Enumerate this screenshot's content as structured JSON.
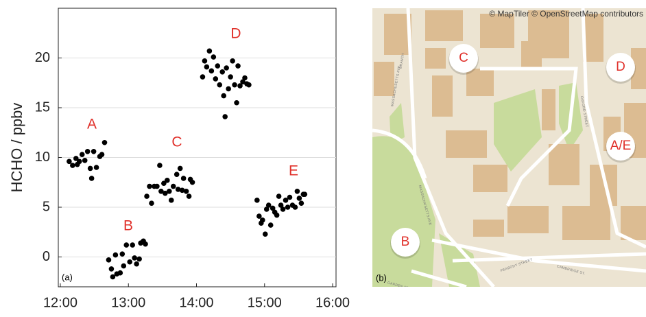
{
  "chart_data": {
    "type": "scatter",
    "ylabel": "HCHO / ppbv",
    "panel_label": "(a)",
    "xlim": [
      11.97,
      16.05
    ],
    "ylim": [
      -3,
      25
    ],
    "xticks": [
      {
        "value": 12,
        "label": "12:00"
      },
      {
        "value": 13,
        "label": "13:00"
      },
      {
        "value": 14,
        "label": "14:00"
      },
      {
        "value": 15,
        "label": "15:00"
      },
      {
        "value": 16,
        "label": "16:00"
      }
    ],
    "yticks": [
      0,
      5,
      10,
      15,
      20
    ],
    "grid": true,
    "annotations": [
      "A",
      "B",
      "C",
      "D",
      "E"
    ],
    "annotation_color": "#e0302a",
    "series": [
      {
        "color": "#000000",
        "x": [
          12.13,
          12.18,
          12.23,
          12.28,
          12.32,
          12.36,
          12.4,
          12.25,
          12.44,
          12.46,
          12.49,
          12.53,
          12.58,
          12.61,
          12.65,
          12.71,
          12.75,
          12.77,
          12.81,
          12.83,
          12.88,
          12.91,
          12.93,
          12.97,
          13.02,
          13.06,
          13.09,
          13.12,
          13.16,
          13.18,
          13.22,
          13.25,
          13.27,
          13.31,
          13.34,
          13.38,
          13.42,
          13.46,
          13.48,
          13.52,
          13.54,
          13.57,
          13.6,
          13.63,
          13.66,
          13.71,
          13.73,
          13.76,
          13.79,
          13.81,
          13.85,
          13.89,
          13.91,
          13.94,
          14.09,
          14.12,
          14.15,
          14.19,
          14.22,
          14.25,
          14.28,
          14.31,
          14.34,
          14.38,
          14.4,
          14.42,
          14.44,
          14.47,
          14.5,
          14.53,
          14.56,
          14.59,
          14.61,
          14.64,
          14.68,
          14.71,
          14.74,
          14.77,
          14.89,
          14.92,
          14.95,
          14.97,
          15.01,
          15.03,
          15.06,
          15.09,
          15.12,
          15.15,
          15.18,
          15.21,
          15.24,
          15.27,
          15.31,
          15.34,
          15.37,
          15.41,
          15.45,
          15.48,
          15.51,
          15.54,
          15.57,
          15.59
        ],
        "values": [
          9.6,
          9.2,
          9.9,
          9.6,
          10.3,
          9.7,
          10.6,
          9.3,
          8.9,
          7.9,
          10.6,
          9.0,
          10.1,
          10.3,
          11.5,
          -0.3,
          -1.2,
          -2.0,
          0.2,
          -1.7,
          -1.6,
          0.3,
          -0.9,
          1.2,
          -0.5,
          1.2,
          -0.1,
          -0.7,
          -0.2,
          1.4,
          1.6,
          1.3,
          6.1,
          7.1,
          5.4,
          7.1,
          7.1,
          9.2,
          6.6,
          7.4,
          6.4,
          7.7,
          6.6,
          5.7,
          7.1,
          8.3,
          6.8,
          8.9,
          6.7,
          7.9,
          6.6,
          6.1,
          7.8,
          7.5,
          18.1,
          19.7,
          19.1,
          20.7,
          18.7,
          20.1,
          17.9,
          19.2,
          17.3,
          18.6,
          16.2,
          14.1,
          19.0,
          16.9,
          18.1,
          19.7,
          17.3,
          15.5,
          19.2,
          17.2,
          17.6,
          18.0,
          17.4,
          17.3,
          5.7,
          4.1,
          3.4,
          3.7,
          2.3,
          4.8,
          5.2,
          3.2,
          4.9,
          4.5,
          4.2,
          6.1,
          5.2,
          4.8,
          5.7,
          5.0,
          6.0,
          5.2,
          5.0,
          6.6,
          5.9,
          5.4,
          6.3,
          6.3
        ]
      }
    ]
  },
  "map": {
    "attribution": "© MapTiler © OpenStreetMap contributors",
    "panel_label": "(b)",
    "markers": [
      "C",
      "D",
      "A/E",
      "B"
    ],
    "streets": [
      "MASSACHUSETTS AVE",
      "BRANCH",
      "MASSACHUSETTS AVE",
      "OXFORD STREET",
      "PEABODY STREET",
      "CAMBRIDGE ST.",
      "GARDEN STREET"
    ]
  }
}
